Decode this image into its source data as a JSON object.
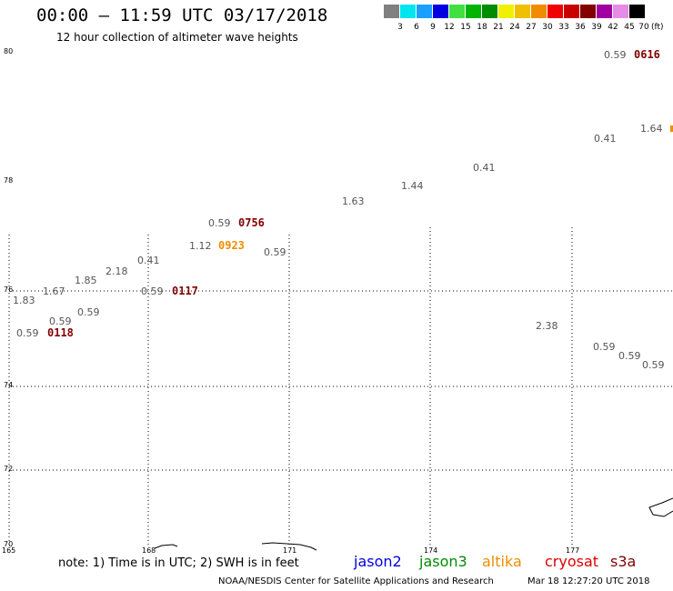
{
  "header": {
    "title": "00:00 – 11:59 UTC 03/17/2018",
    "subtitle": "12 hour collection of altimeter wave heights"
  },
  "colorbar": {
    "unit": "(ft)",
    "swatches": [
      {
        "label": "3",
        "color": "#808080"
      },
      {
        "label": "6",
        "color": "#00e5f0"
      },
      {
        "label": "9",
        "color": "#1aa0ff"
      },
      {
        "label": "12",
        "color": "#0000e0"
      },
      {
        "label": "15",
        "color": "#40e040"
      },
      {
        "label": "18",
        "color": "#00b400"
      },
      {
        "label": "21",
        "color": "#008c00"
      },
      {
        "label": "24",
        "color": "#f0f000"
      },
      {
        "label": "27",
        "color": "#f0c000"
      },
      {
        "label": "30",
        "color": "#f08c00"
      },
      {
        "label": "33",
        "color": "#f00000"
      },
      {
        "label": "36",
        "color": "#c80000"
      },
      {
        "label": "39",
        "color": "#820000"
      },
      {
        "label": "42",
        "color": "#a000a0"
      },
      {
        "label": "45",
        "color": "#e68ce6"
      },
      {
        "label": "70",
        "color": "#000000"
      }
    ]
  },
  "axes": {
    "lat_labels": [
      "80",
      "78",
      "76",
      "74",
      "72",
      "70"
    ],
    "lon_labels": [
      "165",
      "168",
      "171",
      "174",
      "177"
    ]
  },
  "wave_heights": [
    "0.59",
    "1.64",
    "0.41",
    "0.41",
    "1.44",
    "1.63",
    "0.59",
    "1.12",
    "0.59",
    "0.41",
    "2.18",
    "1.85",
    "1.67",
    "0.59",
    "1.83",
    "0.59",
    "0.59",
    "0.59",
    "2.38",
    "0.59",
    "0.59",
    "0.59"
  ],
  "pass_times": [
    {
      "label": "0616",
      "color": "#820000"
    },
    {
      "label": "0756",
      "color": "#820000"
    },
    {
      "label": "0923",
      "color": "#f08c00"
    },
    {
      "label": "0117",
      "color": "#820000"
    },
    {
      "label": "0118",
      "color": "#820000"
    }
  ],
  "footer": {
    "note": "note: 1) Time is in UTC; 2) SWH is in feet",
    "satellites": [
      {
        "label": "jason2",
        "color": "#0000e0"
      },
      {
        "label": "jason3",
        "color": "#008c00"
      },
      {
        "label": "altika",
        "color": "#f08c00"
      },
      {
        "label": "cryosat",
        "color": "#e00000"
      },
      {
        "label": "s3a",
        "color": "#820000"
      }
    ],
    "credit": "NOAA/NESDIS Center for Satellite Applications and Research",
    "timestamp": "Mar 18 12:27:20 UTC 2018"
  }
}
